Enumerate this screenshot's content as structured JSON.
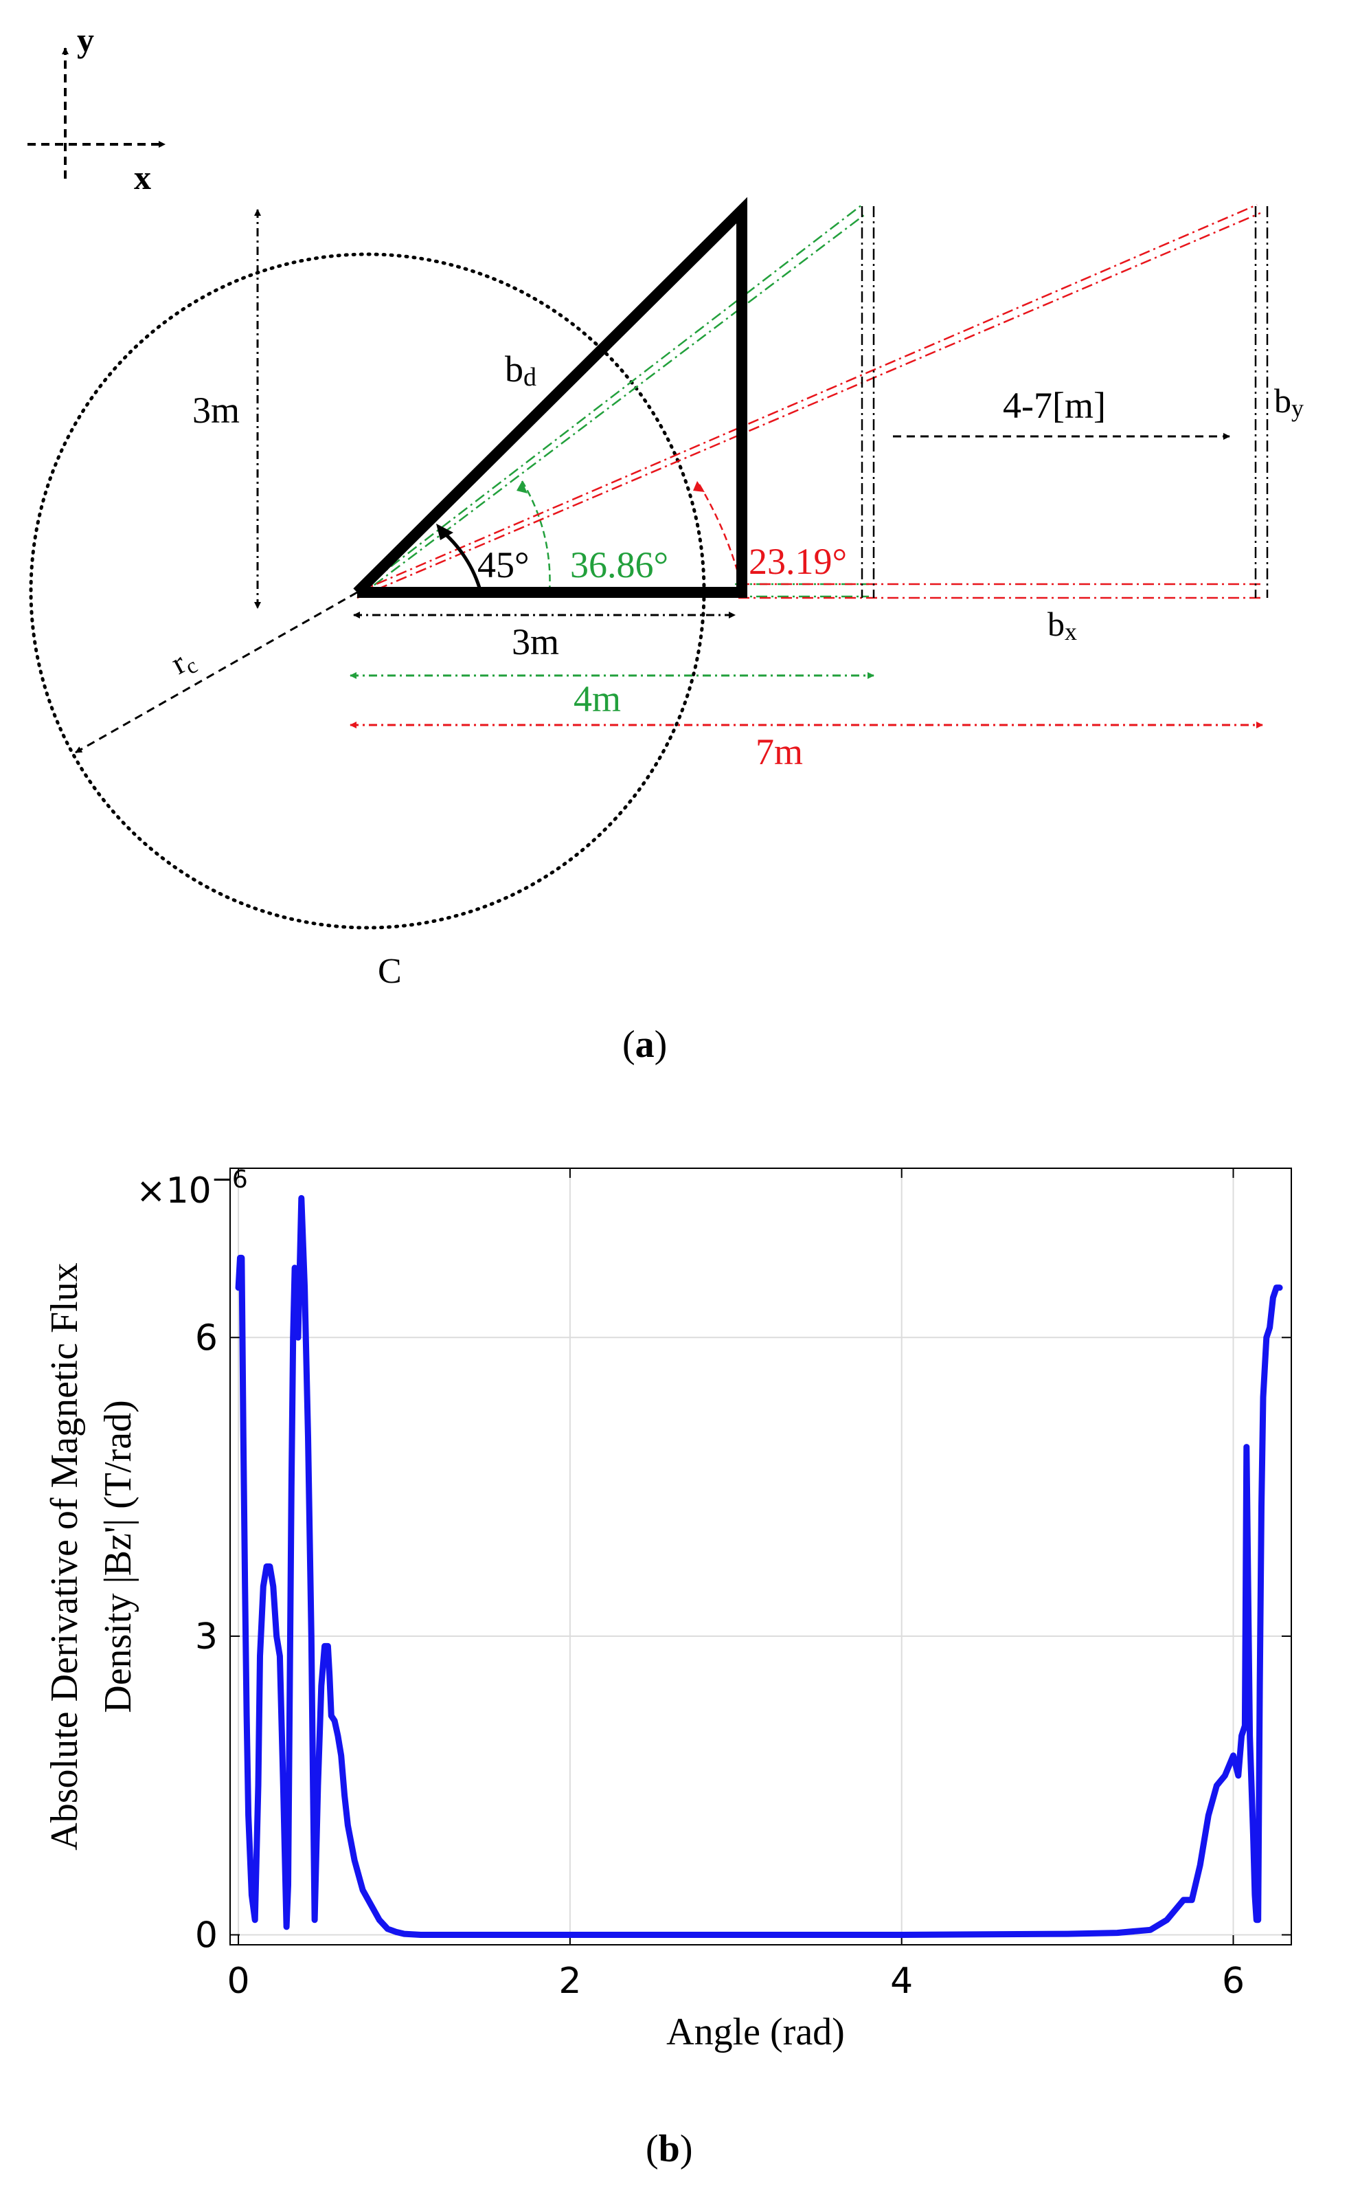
{
  "colors": {
    "black": "#000000",
    "green": "#22a03c",
    "red": "#e8151b",
    "blue": "#1414f0",
    "grid": "#dcdcdc"
  },
  "panel_a": {
    "caption_letter": "a",
    "axis_x": "x",
    "axis_y": "y",
    "height_label": "3m",
    "hypotenuse_label": "b",
    "hypotenuse_sub": "d",
    "angle_45": "45°",
    "angle_green": "36.86°",
    "angle_red": "23.19°",
    "base_3m": "3m",
    "base_4m": "4m",
    "base_7m": "7m",
    "range_label": "4-7[m]",
    "by_label": "b",
    "by_sub": "y",
    "bx_label": "b",
    "bx_sub": "x",
    "radius_label": "r",
    "radius_sub": "c",
    "circle_label": "C"
  },
  "panel_b": {
    "caption_letter": "b"
  },
  "chart_data": {
    "type": "line",
    "title": "",
    "xlabel": "Angle (rad)",
    "ylabel_line1": "Absolute Derivative of Magnetic Flux",
    "ylabel_line2": "Density |Bz'| (T/rad)",
    "exponent_label": "×10",
    "exponent_power": "−6",
    "xlim": [
      -0.05,
      6.35
    ],
    "ylim": [
      -0.1,
      7.7
    ],
    "x_ticks": [
      0,
      2,
      4,
      6
    ],
    "x_tick_labels": [
      "0",
      "2",
      "4",
      "6"
    ],
    "y_ticks": [
      0,
      3,
      6
    ],
    "y_tick_labels": [
      "0",
      "3",
      "6"
    ],
    "grid": true,
    "series": [
      {
        "name": "|Bz'|",
        "color": "#1414f0",
        "x": [
          0.0,
          0.01,
          0.02,
          0.03,
          0.04,
          0.05,
          0.06,
          0.08,
          0.1,
          0.12,
          0.13,
          0.15,
          0.17,
          0.19,
          0.21,
          0.23,
          0.25,
          0.27,
          0.29,
          0.3,
          0.31,
          0.32,
          0.33,
          0.34,
          0.36,
          0.38,
          0.4,
          0.42,
          0.44,
          0.45,
          0.46,
          0.48,
          0.5,
          0.52,
          0.54,
          0.55,
          0.56,
          0.58,
          0.6,
          0.62,
          0.64,
          0.66,
          0.7,
          0.75,
          0.8,
          0.85,
          0.9,
          0.95,
          1.0,
          1.1,
          1.2,
          1.3,
          1.4,
          1.6,
          2.0,
          3.0,
          4.0,
          5.0,
          5.3,
          5.5,
          5.6,
          5.7,
          5.75,
          5.8,
          5.85,
          5.9,
          5.95,
          6.0,
          6.03,
          6.05,
          6.07,
          6.08,
          6.1,
          6.12,
          6.13,
          6.14,
          6.15,
          6.16,
          6.17,
          6.18,
          6.2,
          6.22,
          6.24,
          6.26,
          6.28
        ],
        "values": [
          6.5,
          6.8,
          6.8,
          5.0,
          3.5,
          2.2,
          1.2,
          0.4,
          0.15,
          1.5,
          2.8,
          3.5,
          3.7,
          3.7,
          3.5,
          3.0,
          2.8,
          1.5,
          0.08,
          0.5,
          2.5,
          4.5,
          6.0,
          6.7,
          6.0,
          7.4,
          6.5,
          5.0,
          3.0,
          1.5,
          0.15,
          1.5,
          2.5,
          2.9,
          2.9,
          2.6,
          2.2,
          2.15,
          2.0,
          1.8,
          1.4,
          1.1,
          0.75,
          0.45,
          0.3,
          0.15,
          0.06,
          0.03,
          0.01,
          0.0,
          0.0,
          0.0,
          0.0,
          0.0,
          0.0,
          0.0,
          0.0,
          0.01,
          0.02,
          0.05,
          0.15,
          0.35,
          0.35,
          0.7,
          1.2,
          1.5,
          1.6,
          1.8,
          1.6,
          2.0,
          2.1,
          4.9,
          2.0,
          1.0,
          0.4,
          0.15,
          0.15,
          2.5,
          4.3,
          5.4,
          6.0,
          6.1,
          6.4,
          6.5,
          6.5
        ]
      }
    ]
  }
}
